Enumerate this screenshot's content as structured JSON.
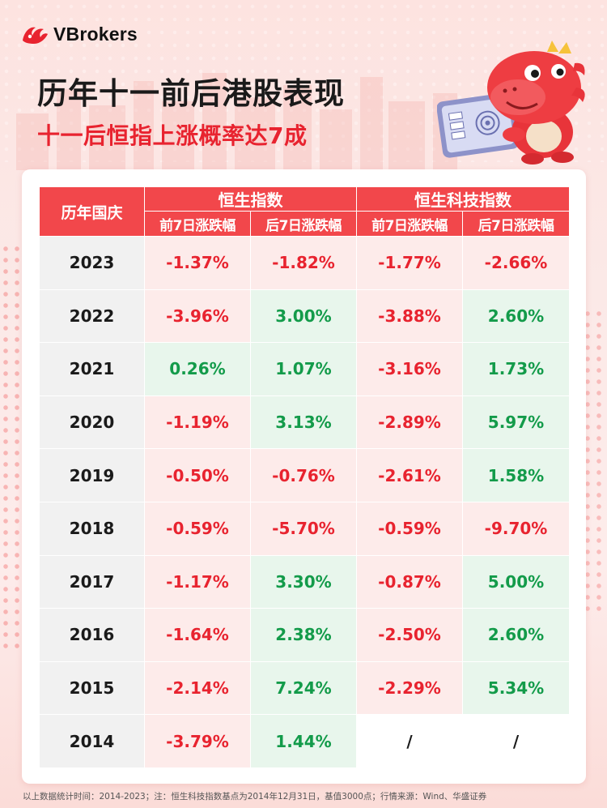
{
  "brand": {
    "name": "VBrokers"
  },
  "title": "历年十一前后港股表现",
  "subtitle": "十一后恒指上涨概率达7成",
  "table": {
    "year_header": "历年国庆",
    "groups": [
      "恒生指数",
      "恒生科技指数"
    ],
    "subheaders": [
      "前7日涨跌幅",
      "后7日涨跌幅",
      "前7日涨跌幅",
      "后7日涨跌幅"
    ],
    "rows": [
      {
        "year": "2023",
        "cells": [
          "-1.37%",
          "-1.82%",
          "-1.77%",
          "-2.66%"
        ],
        "kinds": [
          "neg",
          "neg",
          "neg",
          "neg"
        ]
      },
      {
        "year": "2022",
        "cells": [
          "-3.96%",
          "3.00%",
          "-3.88%",
          "2.60%"
        ],
        "kinds": [
          "neg",
          "pos",
          "neg",
          "pos"
        ]
      },
      {
        "year": "2021",
        "cells": [
          "0.26%",
          "1.07%",
          "-3.16%",
          "1.73%"
        ],
        "kinds": [
          "pos",
          "pos",
          "neg",
          "pos"
        ]
      },
      {
        "year": "2020",
        "cells": [
          "-1.19%",
          "3.13%",
          "-2.89%",
          "5.97%"
        ],
        "kinds": [
          "neg",
          "pos",
          "neg",
          "pos"
        ]
      },
      {
        "year": "2019",
        "cells": [
          "-0.50%",
          "-0.76%",
          "-2.61%",
          "1.58%"
        ],
        "kinds": [
          "neg",
          "neg",
          "neg",
          "pos"
        ]
      },
      {
        "year": "2018",
        "cells": [
          "-0.59%",
          "-5.70%",
          "-0.59%",
          "-9.70%"
        ],
        "kinds": [
          "neg",
          "neg",
          "neg",
          "neg"
        ]
      },
      {
        "year": "2017",
        "cells": [
          "-1.17%",
          "3.30%",
          "-0.87%",
          "5.00%"
        ],
        "kinds": [
          "neg",
          "pos",
          "neg",
          "pos"
        ]
      },
      {
        "year": "2016",
        "cells": [
          "-1.64%",
          "2.38%",
          "-2.50%",
          "2.60%"
        ],
        "kinds": [
          "neg",
          "pos",
          "neg",
          "pos"
        ]
      },
      {
        "year": "2015",
        "cells": [
          "-2.14%",
          "7.24%",
          "-2.29%",
          "5.34%"
        ],
        "kinds": [
          "neg",
          "pos",
          "neg",
          "pos"
        ]
      },
      {
        "year": "2014",
        "cells": [
          "-3.79%",
          "1.44%",
          "/",
          "/"
        ],
        "kinds": [
          "neg",
          "pos",
          "na",
          "na"
        ]
      }
    ]
  },
  "footer": "以上数据统计时间：2014-2023；注：恒生科技指数基点为2014年12月31日，基值3000点；行情来源：Wind、华盛证券",
  "colors": {
    "accent": "#f2474b",
    "negative": "#e8232f",
    "positive": "#139b4a",
    "negative_bg": "#fdebea",
    "positive_bg": "#e8f6ec"
  },
  "icons": [
    "vbrokers-logo-icon",
    "dragon-mascot-icon"
  ]
}
